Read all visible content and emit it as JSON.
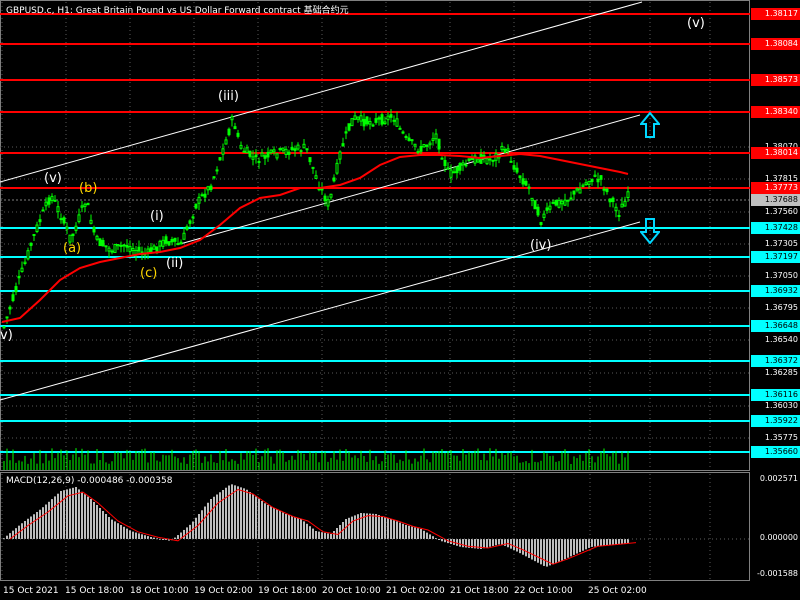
{
  "header": {
    "title": "GBPUSD.c, H1:  Great Britain Pound vs US Dollar Forward contract  基础合约元"
  },
  "price_axis": {
    "ticks": [
      "1.38070",
      "1.37815",
      "1.37560",
      "1.37305",
      "1.37050",
      "1.36795",
      "1.36540",
      "1.36285",
      "1.36030",
      "1.35775"
    ],
    "levels_red": [
      "1.38117",
      "1.38084",
      "1.38573",
      "1.38340",
      "1.38014",
      "1.37773"
    ],
    "current_price": "1.37688",
    "levels_cyan": [
      "1.37428",
      "1.37197",
      "1.36932",
      "1.36648",
      "1.36372",
      "1.36116",
      "1.35922",
      "1.35660"
    ]
  },
  "macd": {
    "title": "MACD(12,26,9) -0.000486 -0.000358",
    "ticks": [
      "0.002571",
      "0.000000",
      "-0.001588"
    ]
  },
  "time_axis": {
    "labels": [
      "15 Oct 2021",
      "15 Oct 18:00",
      "18 Oct 10:00",
      "19 Oct 02:00",
      "19 Oct 18:00",
      "20 Oct 10:00",
      "21 Oct 02:00",
      "21 Oct 18:00",
      "22 Oct 10:00",
      "25 Oct 02:00"
    ]
  },
  "waves": {
    "v_left": "v)",
    "v_first": "(v)",
    "b": "(b)",
    "a": "(a)",
    "i": "(i)",
    "c": "(c)",
    "ii": "(ii)",
    "iii": "(iii)",
    "iv": "(iv)",
    "v_right": "(v)"
  },
  "colors": {
    "background": "#000000",
    "grid": "#00ff00",
    "candle": "#00ff00",
    "ma": "#ff0000",
    "resistance": "#ff0000",
    "support": "#00ffff",
    "channel": "#ffffff",
    "wave_white": "#ffffff",
    "wave_yellow": "#ffd700",
    "arrow": "#00d8ff"
  },
  "icons": {
    "up_arrow": "up-arrow-icon",
    "down_arrow": "down-arrow-icon"
  }
}
